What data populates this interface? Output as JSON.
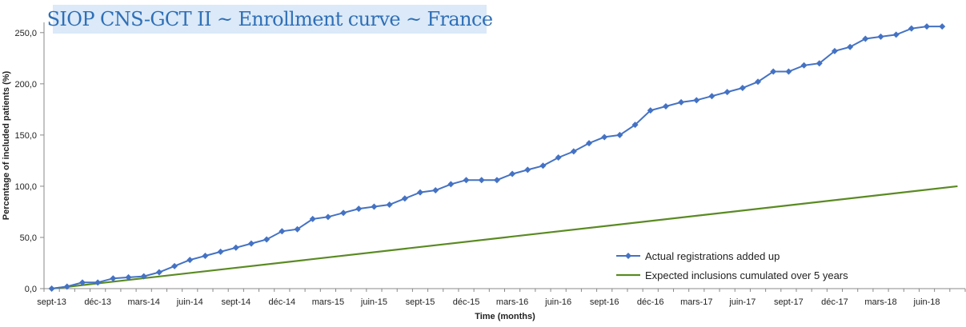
{
  "chart_data": {
    "type": "line",
    "title": "SIOP CNS-GCT II ~ Enrollment curve ~ France",
    "xlabel": "Time (months)",
    "ylabel": "Percentage of included patients (%)",
    "ylim": [
      0,
      260
    ],
    "yticks": [
      "0,0",
      "50,0",
      "100,0",
      "150,0",
      "200,0",
      "250,0"
    ],
    "ytick_values": [
      0,
      50,
      100,
      150,
      200,
      250
    ],
    "xtick_labels": [
      "sept-13",
      "déc-13",
      "mars-14",
      "juin-14",
      "sept-14",
      "déc-14",
      "mars-15",
      "juin-15",
      "sept-15",
      "déc-15",
      "mars-16",
      "juin-16",
      "sept-16",
      "déc-16",
      "mars-17",
      "juin-17",
      "sept-17",
      "déc-17",
      "mars-18",
      "juin-18"
    ],
    "grid": false,
    "legend_position": "bottom-right",
    "series": [
      {
        "name": "Actual registrations added up",
        "color": "#4472c4",
        "marker": "diamond",
        "values": [
          0,
          2,
          6,
          6,
          10,
          11,
          12,
          16,
          22,
          28,
          32,
          36,
          40,
          44,
          48,
          56,
          58,
          68,
          70,
          74,
          78,
          80,
          82,
          88,
          94,
          96,
          102,
          106,
          106,
          106,
          112,
          116,
          120,
          128,
          134,
          142,
          148,
          150,
          160,
          174,
          178,
          182,
          184,
          188,
          192,
          196,
          202,
          212,
          212,
          218,
          220,
          232,
          236,
          244,
          246,
          248,
          254,
          256,
          256
        ]
      },
      {
        "name": "Expected inclusions cumulated over 5 years",
        "color": "#5a8a22",
        "marker": "none",
        "values": [
          0,
          100
        ]
      }
    ]
  }
}
